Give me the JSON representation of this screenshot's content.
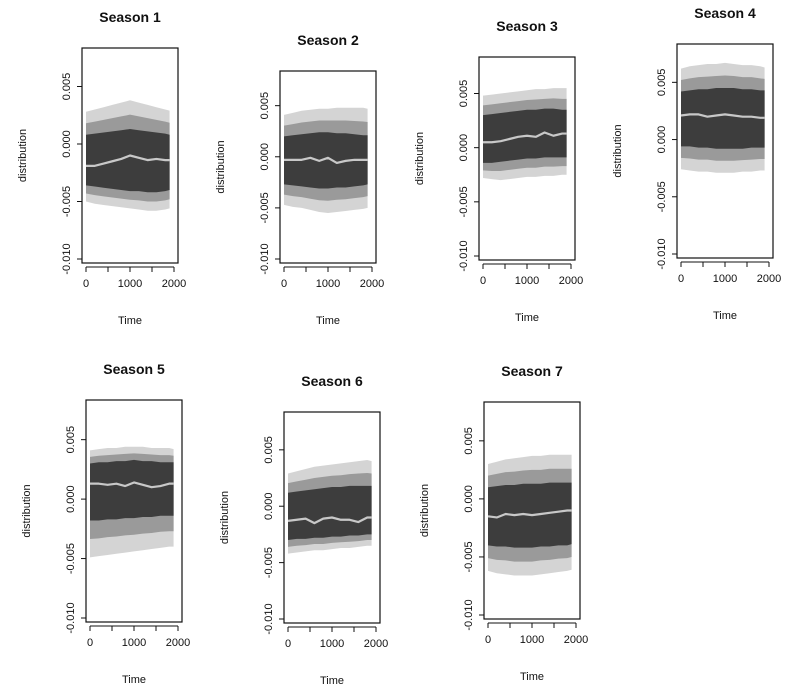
{
  "chart_data": [
    {
      "type": "area",
      "panel": 1,
      "title": "Season 1",
      "xlabel": "Time",
      "ylabel": "distribution",
      "xlim": [
        0,
        2000
      ],
      "ylim": [
        -0.01,
        0.008
      ],
      "xticks": [
        0,
        1000,
        2000
      ],
      "yticks": [
        -0.01,
        -0.005,
        0.0,
        0.005
      ],
      "ytick_labels": [
        "-0.010",
        "-0.005",
        "0.000",
        "0.005"
      ],
      "xtick_labels": [
        "0",
        "1000",
        "2000"
      ],
      "median": {
        "x": [
          0,
          200,
          400,
          600,
          800,
          1000,
          1200,
          1400,
          1600,
          1800,
          1900
        ],
        "y": [
          -0.0019,
          -0.0019,
          -0.0017,
          -0.0015,
          -0.0013,
          -0.001,
          -0.0012,
          -0.0014,
          -0.0013,
          -0.0014,
          -0.0014
        ]
      },
      "band_upper": [
        0.0028,
        0.003,
        0.0032,
        0.0034,
        0.0036,
        0.0038,
        0.0036,
        0.0034,
        0.0032,
        0.003,
        0.0029
      ],
      "band_lower": [
        -0.005,
        -0.0052,
        -0.0053,
        -0.0054,
        -0.0055,
        -0.0056,
        -0.0057,
        -0.0058,
        -0.0058,
        -0.0057,
        -0.0056
      ],
      "core_upper": [
        0.0008,
        0.0009,
        0.001,
        0.0011,
        0.0012,
        0.0013,
        0.0012,
        0.0011,
        0.001,
        0.0009,
        0.0008
      ],
      "core_lower": [
        -0.0036,
        -0.0037,
        -0.0038,
        -0.0039,
        -0.004,
        -0.0041,
        -0.0041,
        -0.0042,
        -0.0042,
        -0.0041,
        -0.004
      ]
    },
    {
      "type": "area",
      "panel": 2,
      "title": "Season 2",
      "xlabel": "Time",
      "ylabel": "distribution",
      "xlim": [
        0,
        2000
      ],
      "ylim": [
        -0.01,
        0.008
      ],
      "xticks": [
        0,
        1000,
        2000
      ],
      "yticks": [
        -0.01,
        -0.005,
        0.0,
        0.005
      ],
      "ytick_labels": [
        "-0.010",
        "-0.005",
        "0.000",
        "0.005"
      ],
      "xtick_labels": [
        "0",
        "1000",
        "2000"
      ],
      "median": {
        "x": [
          0,
          200,
          400,
          600,
          800,
          1000,
          1200,
          1400,
          1600,
          1800,
          1900
        ],
        "y": [
          -0.0003,
          -0.0003,
          -0.0003,
          -0.0001,
          -0.0004,
          -0.0001,
          -0.0006,
          -0.0004,
          -0.0003,
          -0.0003,
          -0.0003
        ]
      },
      "band_upper": [
        0.0041,
        0.0043,
        0.0045,
        0.0046,
        0.0047,
        0.0047,
        0.0048,
        0.0048,
        0.0048,
        0.0048,
        0.0047
      ],
      "band_lower": [
        -0.0047,
        -0.0049,
        -0.005,
        -0.0052,
        -0.0054,
        -0.0055,
        -0.0054,
        -0.0053,
        -0.0052,
        -0.0051,
        -0.005
      ],
      "core_upper": [
        0.002,
        0.0021,
        0.0022,
        0.0023,
        0.0024,
        0.0024,
        0.0023,
        0.0023,
        0.0022,
        0.0021,
        0.0021
      ],
      "core_lower": [
        -0.0027,
        -0.0028,
        -0.0029,
        -0.003,
        -0.0031,
        -0.0031,
        -0.003,
        -0.003,
        -0.0029,
        -0.0028,
        -0.0027
      ]
    },
    {
      "type": "area",
      "panel": 3,
      "title": "Season 3",
      "xlabel": "Time",
      "ylabel": "distribution",
      "xlim": [
        0,
        2000
      ],
      "ylim": [
        -0.01,
        0.008
      ],
      "xticks": [
        0,
        1000,
        2000
      ],
      "yticks": [
        -0.01,
        -0.005,
        0.0,
        0.005
      ],
      "ytick_labels": [
        "-0.010",
        "-0.005",
        "0.000",
        "0.005"
      ],
      "xtick_labels": [
        "0",
        "1000",
        "2000"
      ],
      "median": {
        "x": [
          0,
          200,
          400,
          600,
          800,
          1000,
          1200,
          1400,
          1600,
          1800,
          1900
        ],
        "y": [
          0.0005,
          0.0005,
          0.0006,
          0.0008,
          0.001,
          0.0011,
          0.001,
          0.0014,
          0.0011,
          0.0013,
          0.0013
        ]
      },
      "band_upper": [
        0.0048,
        0.0049,
        0.005,
        0.0051,
        0.0052,
        0.0053,
        0.0054,
        0.0054,
        0.0055,
        0.0055,
        0.0055
      ],
      "band_lower": [
        -0.0028,
        -0.0029,
        -0.003,
        -0.0029,
        -0.0028,
        -0.0027,
        -0.0027,
        -0.0026,
        -0.0026,
        -0.0025,
        -0.0025
      ],
      "core_upper": [
        0.003,
        0.0031,
        0.0032,
        0.0033,
        0.0034,
        0.0035,
        0.0035,
        0.0036,
        0.0036,
        0.0035,
        0.0035
      ],
      "core_lower": [
        -0.0014,
        -0.0014,
        -0.0013,
        -0.0012,
        -0.0011,
        -0.001,
        -0.001,
        -0.0009,
        -0.0009,
        -0.0009,
        -0.0009
      ]
    },
    {
      "type": "area",
      "panel": 4,
      "title": "Season 4",
      "xlabel": "Time",
      "ylabel": "distribution",
      "xlim": [
        0,
        2000
      ],
      "ylim": [
        -0.01,
        0.008
      ],
      "xticks": [
        0,
        1000,
        2000
      ],
      "yticks": [
        -0.01,
        -0.005,
        0.0,
        0.005
      ],
      "ytick_labels": [
        "-0.010",
        "-0.005",
        "0.000",
        "0.005"
      ],
      "xtick_labels": [
        "0",
        "1000",
        "2000"
      ],
      "median": {
        "x": [
          0,
          200,
          400,
          600,
          800,
          1000,
          1200,
          1400,
          1600,
          1800,
          1900
        ],
        "y": [
          0.0021,
          0.0022,
          0.0022,
          0.002,
          0.0021,
          0.0022,
          0.0021,
          0.002,
          0.002,
          0.0019,
          0.0019
        ]
      },
      "band_upper": [
        0.0062,
        0.0064,
        0.0065,
        0.0066,
        0.0066,
        0.0067,
        0.0066,
        0.0065,
        0.0065,
        0.0064,
        0.0063
      ],
      "band_lower": [
        -0.0026,
        -0.0027,
        -0.0028,
        -0.0028,
        -0.0029,
        -0.0029,
        -0.0029,
        -0.0028,
        -0.0028,
        -0.0027,
        -0.0027
      ],
      "core_upper": [
        0.0042,
        0.0043,
        0.0044,
        0.0044,
        0.0045,
        0.0045,
        0.0045,
        0.0044,
        0.0044,
        0.0043,
        0.0043
      ],
      "core_lower": [
        -0.0006,
        -0.0006,
        -0.0007,
        -0.0007,
        -0.0008,
        -0.0008,
        -0.0008,
        -0.0008,
        -0.0007,
        -0.0007,
        -0.0007
      ]
    },
    {
      "type": "area",
      "panel": 5,
      "title": "Season 5",
      "xlabel": "Time",
      "ylabel": "distribution",
      "xlim": [
        0,
        2000
      ],
      "ylim": [
        -0.01,
        0.008
      ],
      "xticks": [
        0,
        1000,
        2000
      ],
      "yticks": [
        -0.01,
        -0.005,
        0.0,
        0.005
      ],
      "ytick_labels": [
        "-0.010",
        "-0.005",
        "0.000",
        "0.005"
      ],
      "xtick_labels": [
        "0",
        "1000",
        "2000"
      ],
      "median": {
        "x": [
          0,
          200,
          400,
          600,
          800,
          1000,
          1200,
          1400,
          1600,
          1800,
          1900
        ],
        "y": [
          0.0013,
          0.0013,
          0.0012,
          0.0013,
          0.0011,
          0.0014,
          0.0012,
          0.001,
          0.0011,
          0.0013,
          0.0013
        ]
      },
      "band_upper": [
        0.0041,
        0.0042,
        0.0043,
        0.0043,
        0.0044,
        0.0044,
        0.0044,
        0.0043,
        0.0043,
        0.0043,
        0.0042
      ],
      "band_lower": [
        -0.0049,
        -0.0048,
        -0.0047,
        -0.0046,
        -0.0045,
        -0.0044,
        -0.0043,
        -0.0042,
        -0.0041,
        -0.004,
        -0.004
      ],
      "core_upper": [
        0.003,
        0.0031,
        0.0031,
        0.0032,
        0.0032,
        0.0033,
        0.0032,
        0.0032,
        0.0031,
        0.0031,
        0.0031
      ],
      "core_lower": [
        -0.0018,
        -0.0018,
        -0.0017,
        -0.0017,
        -0.0016,
        -0.0016,
        -0.0015,
        -0.0015,
        -0.0014,
        -0.0014,
        -0.0014
      ]
    },
    {
      "type": "area",
      "panel": 6,
      "title": "Season 6",
      "xlabel": "Time",
      "ylabel": "distribution",
      "xlim": [
        0,
        2000
      ],
      "ylim": [
        -0.01,
        0.008
      ],
      "xticks": [
        0,
        1000,
        2000
      ],
      "yticks": [
        -0.01,
        -0.005,
        0.0,
        0.005
      ],
      "ytick_labels": [
        "-0.010",
        "-0.005",
        "0.000",
        "0.005"
      ],
      "xtick_labels": [
        "0",
        "1000",
        "2000"
      ],
      "median": {
        "x": [
          0,
          200,
          400,
          600,
          800,
          1000,
          1200,
          1400,
          1600,
          1800,
          1900
        ],
        "y": [
          -0.0013,
          -0.0012,
          -0.0011,
          -0.0015,
          -0.0011,
          -0.001,
          -0.0012,
          -0.0012,
          -0.0014,
          -0.001,
          -0.001
        ]
      },
      "band_upper": [
        0.0029,
        0.0031,
        0.0033,
        0.0035,
        0.0036,
        0.0037,
        0.0038,
        0.0039,
        0.004,
        0.0041,
        0.004
      ],
      "band_lower": [
        -0.0042,
        -0.0041,
        -0.004,
        -0.0039,
        -0.0039,
        -0.0038,
        -0.0037,
        -0.0037,
        -0.0036,
        -0.0035,
        -0.0035
      ],
      "core_upper": [
        0.0012,
        0.0013,
        0.0014,
        0.0015,
        0.0016,
        0.0017,
        0.0017,
        0.0018,
        0.0018,
        0.0018,
        0.0018
      ],
      "core_lower": [
        -0.003,
        -0.0029,
        -0.0029,
        -0.0028,
        -0.0028,
        -0.0027,
        -0.0027,
        -0.0026,
        -0.0026,
        -0.0025,
        -0.0025
      ]
    },
    {
      "type": "area",
      "panel": 7,
      "title": "Season 7",
      "xlabel": "Time",
      "ylabel": "distribution",
      "xlim": [
        0,
        2000
      ],
      "ylim": [
        -0.01,
        0.008
      ],
      "xticks": [
        0,
        1000,
        2000
      ],
      "yticks": [
        -0.01,
        -0.005,
        0.0,
        0.005
      ],
      "ytick_labels": [
        "-0.010",
        "-0.005",
        "0.000",
        "0.005"
      ],
      "xtick_labels": [
        "0",
        "1000",
        "2000"
      ],
      "median": {
        "x": [
          0,
          200,
          400,
          600,
          800,
          1000,
          1200,
          1400,
          1600,
          1800,
          1900
        ],
        "y": [
          -0.0015,
          -0.0016,
          -0.0013,
          -0.0014,
          -0.0013,
          -0.0014,
          -0.0013,
          -0.0012,
          -0.0011,
          -0.001,
          -0.001
        ]
      },
      "band_upper": [
        0.003,
        0.0032,
        0.0034,
        0.0035,
        0.0036,
        0.0037,
        0.0037,
        0.0038,
        0.0038,
        0.0038,
        0.0038
      ],
      "band_lower": [
        -0.0062,
        -0.0064,
        -0.0065,
        -0.0066,
        -0.0066,
        -0.0066,
        -0.0065,
        -0.0064,
        -0.0063,
        -0.0062,
        -0.0061
      ],
      "core_upper": [
        0.001,
        0.0011,
        0.0012,
        0.0012,
        0.0013,
        0.0013,
        0.0013,
        0.0014,
        0.0014,
        0.0014,
        0.0014
      ],
      "core_lower": [
        -0.004,
        -0.0041,
        -0.0041,
        -0.0042,
        -0.0042,
        -0.0042,
        -0.0041,
        -0.0041,
        -0.004,
        -0.004,
        -0.0039
      ]
    }
  ],
  "colors": {
    "band_outer": "#d4d4d4",
    "band_mid": "#9a9a9a",
    "band_core": "#3d3d3d",
    "median_line": "#c8c8c8",
    "frame": "#111111",
    "text": "#111111"
  }
}
